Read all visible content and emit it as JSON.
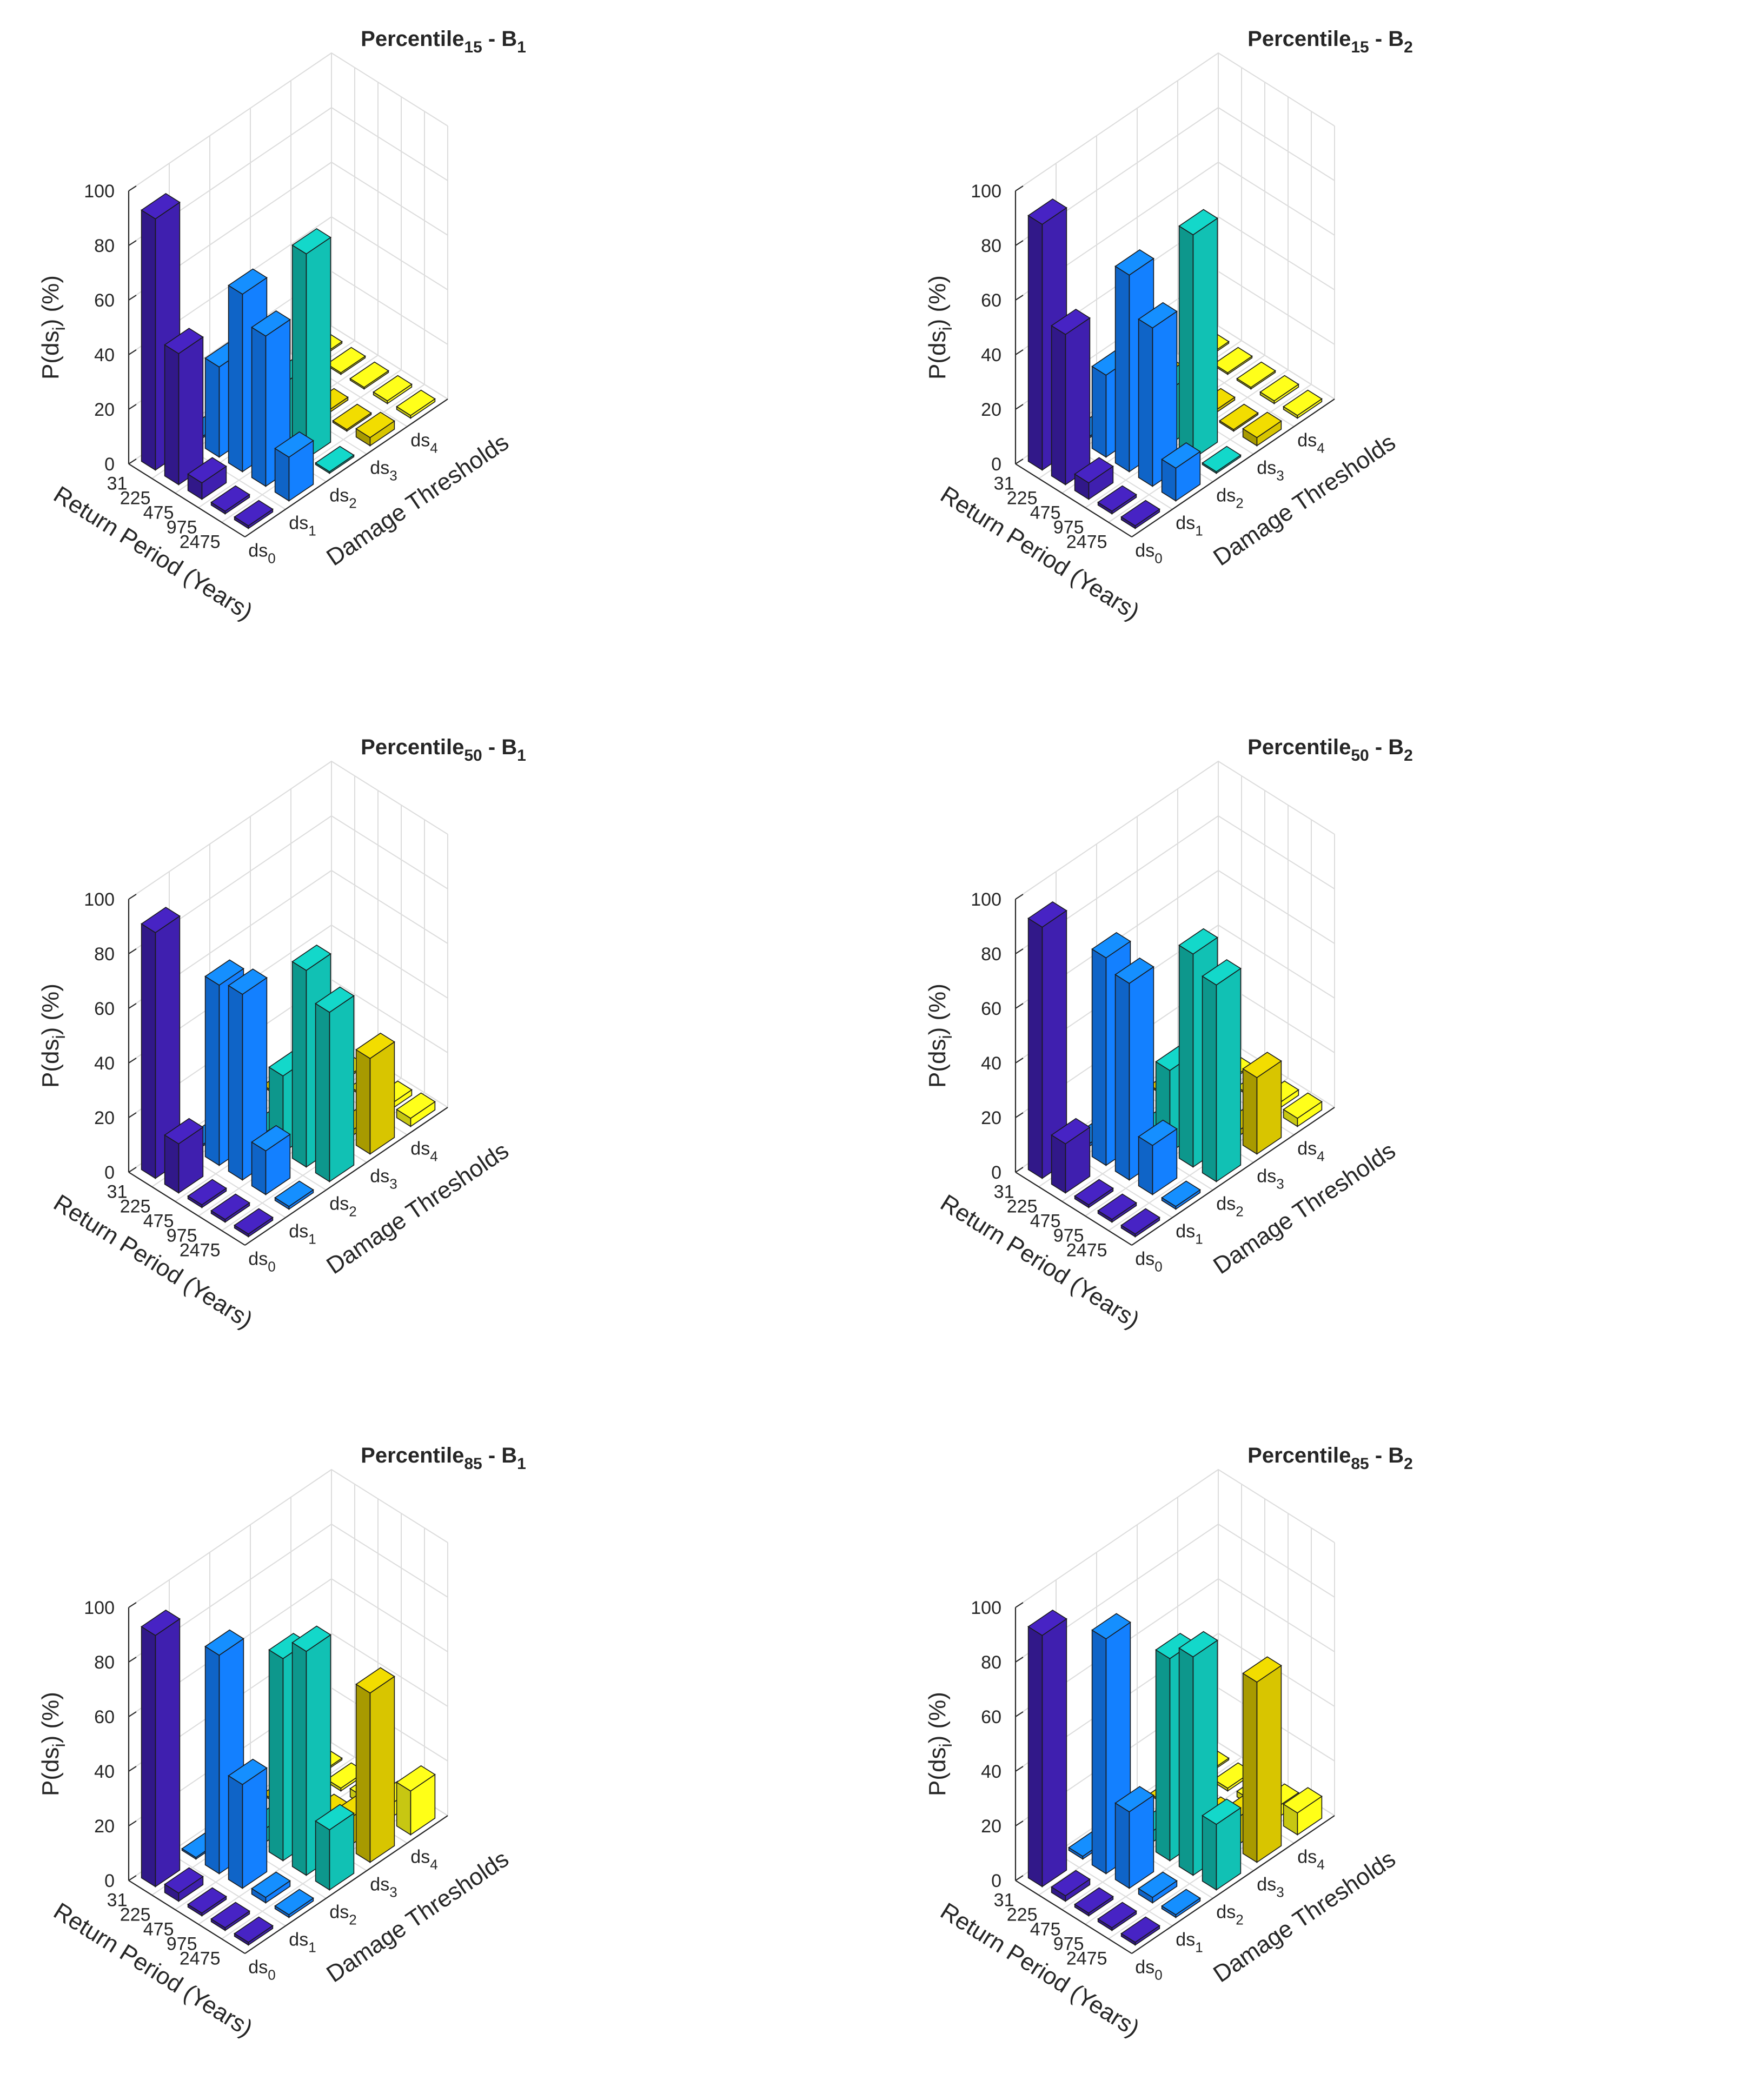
{
  "figure": {
    "subscripts": {
      "i": "i",
      "ds0": "0",
      "ds1": "1",
      "ds2": "2",
      "ds3": "3",
      "ds4": "4",
      "p15": "15",
      "p50": "50",
      "p85": "85",
      "b1": "1",
      "b2": "2"
    }
  },
  "chart_data": [
    {
      "type": "bar3d",
      "title_prefix": "Percentile",
      "title_subscript": "15",
      "title_suffix": " - B",
      "title_suffix_subscript": "1",
      "zlabel_prefix": "P(ds",
      "zlabel_subscript": "i",
      "zlabel_suffix": ") (%)",
      "xlabel": "Return Period (Years)",
      "ylabel": "Damage Thresholds",
      "return_periods": [
        "31",
        "225",
        "475",
        "975",
        "2475"
      ],
      "damage_thresholds": [
        "ds",
        "ds",
        "ds",
        "ds",
        "ds"
      ],
      "damage_threshold_subscripts": [
        "0",
        "1",
        "2",
        "3",
        "4"
      ],
      "zticks": [
        "0",
        "20",
        "40",
        "60",
        "80",
        "100"
      ],
      "zlim": [
        0,
        100
      ],
      "colors": [
        "#3F1FAF",
        "#1380FF",
        "#11C1B4",
        "#D8C500",
        "#FFFF17"
      ],
      "series": [
        {
          "values": [
            92,
            48,
            6,
            1,
            1
          ]
        },
        {
          "values": [
            0,
            33,
            65,
            55,
            16
          ]
        },
        {
          "values": [
            0,
            0,
            22,
            75,
            0
          ]
        },
        {
          "values": [
            0,
            0,
            1,
            0,
            3
          ]
        },
        {
          "values": [
            0,
            0,
            0,
            1,
            1
          ]
        }
      ]
    },
    {
      "type": "bar3d",
      "title_prefix": "Percentile",
      "title_subscript": "15",
      "title_suffix": " - B",
      "title_suffix_subscript": "2",
      "zlabel_prefix": "P(ds",
      "zlabel_subscript": "i",
      "zlabel_suffix": ") (%)",
      "xlabel": "Return Period (Years)",
      "ylabel": "Damage Thresholds",
      "return_periods": [
        "31",
        "225",
        "475",
        "975",
        "2475"
      ],
      "damage_thresholds": [
        "ds",
        "ds",
        "ds",
        "ds",
        "ds"
      ],
      "damage_threshold_subscripts": [
        "0",
        "1",
        "2",
        "3",
        "4"
      ],
      "zticks": [
        "0",
        "20",
        "40",
        "60",
        "80",
        "100"
      ],
      "zlim": [
        0,
        100
      ],
      "colors": [
        "#3F1FAF",
        "#1380FF",
        "#11C1B4",
        "#D8C500",
        "#FFFF17"
      ],
      "series": [
        {
          "values": [
            90,
            55,
            6,
            1,
            1
          ]
        },
        {
          "values": [
            0,
            30,
            72,
            58,
            12
          ]
        },
        {
          "values": [
            0,
            0,
            20,
            82,
            0
          ]
        },
        {
          "values": [
            0,
            0,
            1,
            0,
            3
          ]
        },
        {
          "values": [
            0,
            0,
            0,
            1,
            1
          ]
        }
      ]
    },
    {
      "type": "bar3d",
      "title_prefix": "Percentile",
      "title_subscript": "50",
      "title_suffix": " - B",
      "title_suffix_subscript": "1",
      "zlabel_prefix": "P(ds",
      "zlabel_subscript": "i",
      "zlabel_suffix": ") (%)",
      "xlabel": "Return Period (Years)",
      "ylabel": "Damage Thresholds",
      "return_periods": [
        "31",
        "225",
        "475",
        "975",
        "2475"
      ],
      "damage_thresholds": [
        "ds",
        "ds",
        "ds",
        "ds",
        "ds"
      ],
      "damage_threshold_subscripts": [
        "0",
        "1",
        "2",
        "3",
        "4"
      ],
      "zticks": [
        "0",
        "20",
        "40",
        "60",
        "80",
        "100"
      ],
      "zlim": [
        0,
        100
      ],
      "colors": [
        "#3F1FAF",
        "#1380FF",
        "#11C1B4",
        "#D8C500",
        "#FFFF17"
      ],
      "series": [
        {
          "values": [
            90,
            18,
            1,
            1,
            1
          ]
        },
        {
          "values": [
            0,
            66,
            68,
            16,
            1
          ]
        },
        {
          "values": [
            0,
            0,
            28,
            72,
            62
          ]
        },
        {
          "values": [
            0,
            0,
            0,
            2,
            35
          ]
        },
        {
          "values": [
            0,
            0,
            0,
            2,
            3
          ]
        }
      ]
    },
    {
      "type": "bar3d",
      "title_prefix": "Percentile",
      "title_subscript": "50",
      "title_suffix": " - B",
      "title_suffix_subscript": "2",
      "zlabel_prefix": "P(ds",
      "zlabel_subscript": "i",
      "zlabel_suffix": ") (%)",
      "xlabel": "Return Period (Years)",
      "ylabel": "Damage Thresholds",
      "return_periods": [
        "31",
        "225",
        "475",
        "975",
        "2475"
      ],
      "damage_thresholds": [
        "ds",
        "ds",
        "ds",
        "ds",
        "ds"
      ],
      "damage_threshold_subscripts": [
        "0",
        "1",
        "2",
        "3",
        "4"
      ],
      "zticks": [
        "0",
        "20",
        "40",
        "60",
        "80",
        "100"
      ],
      "zlim": [
        0,
        100
      ],
      "colors": [
        "#3F1FAF",
        "#1380FF",
        "#11C1B4",
        "#D8C500",
        "#FFFF17"
      ],
      "series": [
        {
          "values": [
            92,
            18,
            1,
            1,
            1
          ]
        },
        {
          "values": [
            1,
            76,
            72,
            18,
            1
          ]
        },
        {
          "values": [
            0,
            0,
            30,
            78,
            72
          ]
        },
        {
          "values": [
            0,
            0,
            0,
            2,
            28
          ]
        },
        {
          "values": [
            0,
            0,
            0,
            2,
            3
          ]
        }
      ]
    },
    {
      "type": "bar3d",
      "title_prefix": "Percentile",
      "title_subscript": "85",
      "title_suffix": " - B",
      "title_suffix_subscript": "1",
      "zlabel_prefix": "P(ds",
      "zlabel_subscript": "i",
      "zlabel_suffix": ") (%)",
      "xlabel": "Return Period (Years)",
      "ylabel": "Damage Thresholds",
      "return_periods": [
        "31",
        "225",
        "475",
        "975",
        "2475"
      ],
      "damage_thresholds": [
        "ds",
        "ds",
        "ds",
        "ds",
        "ds"
      ],
      "damage_threshold_subscripts": [
        "0",
        "1",
        "2",
        "3",
        "4"
      ],
      "zticks": [
        "0",
        "20",
        "40",
        "60",
        "80",
        "100"
      ],
      "zlim": [
        0,
        100
      ],
      "colors": [
        "#3F1FAF",
        "#1380FF",
        "#11C1B4",
        "#D8C500",
        "#FFFF17"
      ],
      "series": [
        {
          "values": [
            92,
            3,
            1,
            1,
            1
          ]
        },
        {
          "values": [
            0,
            80,
            38,
            2,
            1
          ]
        },
        {
          "values": [
            0,
            5,
            74,
            82,
            22
          ]
        },
        {
          "values": [
            0,
            3,
            5,
            10,
            62
          ]
        },
        {
          "values": [
            0,
            1,
            3,
            5,
            16
          ]
        }
      ]
    },
    {
      "type": "bar3d",
      "title_prefix": "Percentile",
      "title_subscript": "85",
      "title_suffix": " - B",
      "title_suffix_subscript": "2",
      "zlabel_prefix": "P(ds",
      "zlabel_subscript": "i",
      "zlabel_suffix": ") (%)",
      "xlabel": "Return Period (Years)",
      "ylabel": "Damage Thresholds",
      "return_periods": [
        "31",
        "225",
        "475",
        "975",
        "2475"
      ],
      "damage_thresholds": [
        "ds",
        "ds",
        "ds",
        "ds",
        "ds"
      ],
      "damage_threshold_subscripts": [
        "0",
        "1",
        "2",
        "3",
        "4"
      ],
      "zticks": [
        "0",
        "20",
        "40",
        "60",
        "80",
        "100"
      ],
      "zlim": [
        0,
        100
      ],
      "colors": [
        "#3F1FAF",
        "#1380FF",
        "#11C1B4",
        "#D8C500",
        "#FFFF17"
      ],
      "series": [
        {
          "values": [
            92,
            2,
            1,
            1,
            1
          ]
        },
        {
          "values": [
            1,
            86,
            28,
            2,
            1
          ]
        },
        {
          "values": [
            0,
            4,
            74,
            80,
            24
          ]
        },
        {
          "values": [
            0,
            2,
            4,
            10,
            66
          ]
        },
        {
          "values": [
            0,
            1,
            2,
            4,
            8
          ]
        }
      ]
    }
  ]
}
